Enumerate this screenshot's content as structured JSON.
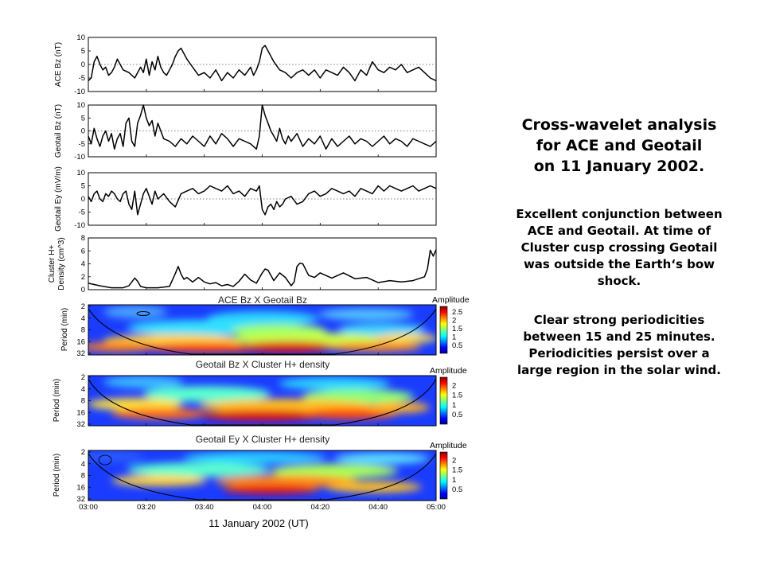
{
  "description": {
    "title_lines": [
      "Cross-wavelet analysis",
      "for ACE and Geotail",
      "on 11 January 2002."
    ],
    "para1_lines": [
      "Excellent conjunction between",
      "ACE and Geotail. At time of",
      "Cluster cusp crossing Geotail",
      "was outside the Earth‘s bow",
      "shock."
    ],
    "para2_lines": [
      "Clear strong periodicities",
      "between 15 and 25 minutes.",
      "Periodicities persist over a",
      "large region in the solar wind."
    ]
  },
  "chart_data": {
    "type": "line",
    "xlabel": "11 January 2002 (UT)",
    "x_ticks": [
      "03:00",
      "03:20",
      "03:40",
      "04:00",
      "04:20",
      "04:40",
      "05:00"
    ],
    "x_minutes": [
      0,
      20,
      40,
      60,
      80,
      100,
      120
    ],
    "series": [
      {
        "name": "ACE Bz",
        "ylabel": "ACE Bz (nT)",
        "ylim": [
          -10,
          10
        ],
        "yticks": [
          "10",
          "5",
          "0",
          "-5",
          "-10"
        ],
        "x": [
          0,
          1,
          2,
          3,
          4,
          5,
          6,
          7,
          8,
          9,
          10,
          12,
          14,
          16,
          18,
          19,
          20,
          21,
          22,
          23,
          24,
          25,
          26,
          27,
          28,
          29,
          30,
          31,
          32,
          34,
          36,
          38,
          40,
          42,
          44,
          46,
          48,
          50,
          52,
          54,
          56,
          57,
          58,
          59,
          60,
          61,
          62,
          63,
          64,
          66,
          68,
          70,
          72,
          74,
          76,
          78,
          80,
          82,
          84,
          86,
          88,
          90,
          92,
          94,
          96,
          98,
          100,
          102,
          104,
          106,
          108,
          110,
          112,
          114,
          116,
          118,
          120
        ],
        "values": [
          -6,
          -5,
          1,
          3,
          0,
          -2,
          -1,
          -4,
          -3,
          -1,
          2,
          -2,
          -3,
          -5,
          -1,
          -3,
          2,
          -4,
          1,
          -2,
          3,
          -1,
          -3,
          -4,
          -2,
          0,
          3,
          5,
          6,
          2,
          -1,
          -4,
          -3,
          -5,
          -2,
          -6,
          -3,
          -5,
          -2,
          -4,
          -1,
          -4,
          -2,
          1,
          6,
          7,
          5,
          3,
          1,
          -2,
          -3,
          -5,
          -3,
          -2,
          -4,
          -2,
          -5,
          -2,
          -3,
          -4,
          -1,
          -3,
          -6,
          -2,
          -4,
          1,
          -2,
          -3,
          -1,
          -2,
          0,
          -3,
          -2,
          -1,
          -3,
          -5,
          -6
        ]
      },
      {
        "name": "Geotail Bz",
        "ylabel": "Geotail Bz (nT)",
        "ylim": [
          -10,
          10
        ],
        "yticks": [
          "10",
          "5",
          "0",
          "-5",
          "-10"
        ],
        "x": [
          0,
          1,
          2,
          3,
          4,
          5,
          6,
          7,
          8,
          9,
          10,
          11,
          12,
          13,
          14,
          15,
          16,
          17,
          18,
          19,
          20,
          21,
          22,
          23,
          24,
          25,
          26,
          28,
          30,
          32,
          34,
          36,
          38,
          40,
          42,
          44,
          46,
          48,
          50,
          52,
          54,
          56,
          58,
          59,
          60,
          61,
          62,
          63,
          64,
          65,
          66,
          67,
          68,
          69,
          70,
          72,
          74,
          76,
          78,
          80,
          82,
          84,
          86,
          88,
          90,
          92,
          94,
          96,
          98,
          100,
          102,
          104,
          106,
          108,
          110,
          112,
          114,
          116,
          118,
          120
        ],
        "values": [
          -2,
          -5,
          1,
          -3,
          -6,
          -2,
          0,
          -4,
          -1,
          -7,
          -3,
          -1,
          -6,
          3,
          5,
          -4,
          -6,
          3,
          6,
          10,
          5,
          2,
          4,
          -2,
          3,
          0,
          -3,
          -4,
          -6,
          -3,
          -5,
          -2,
          -4,
          -6,
          -2,
          -5,
          -1,
          -3,
          -6,
          -3,
          -4,
          -5,
          -7,
          -2,
          10,
          6,
          3,
          0,
          -2,
          -4,
          1,
          -3,
          -5,
          -2,
          -4,
          -1,
          -6,
          -3,
          -5,
          -2,
          -7,
          -3,
          -6,
          -4,
          -2,
          -5,
          -3,
          -4,
          -6,
          -4,
          -2,
          -5,
          -3,
          -4,
          -6,
          -3,
          -4,
          -5,
          -6,
          -4
        ]
      },
      {
        "name": "Geotail Ey",
        "ylabel": "Geotail Ey (mV/m)",
        "ylim": [
          -10,
          10
        ],
        "yticks": [
          "10",
          "5",
          "0",
          "-5",
          "-10"
        ],
        "x": [
          0,
          1,
          2,
          3,
          4,
          5,
          6,
          7,
          8,
          9,
          10,
          11,
          12,
          13,
          14,
          15,
          16,
          17,
          18,
          19,
          20,
          21,
          22,
          23,
          24,
          26,
          28,
          30,
          32,
          34,
          36,
          38,
          40,
          42,
          44,
          46,
          48,
          50,
          52,
          54,
          56,
          58,
          59,
          60,
          61,
          62,
          63,
          64,
          65,
          66,
          67,
          68,
          70,
          72,
          74,
          76,
          78,
          80,
          82,
          84,
          86,
          88,
          90,
          92,
          94,
          96,
          98,
          100,
          102,
          104,
          106,
          108,
          110,
          112,
          114,
          116,
          118,
          120
        ],
        "values": [
          1,
          -1,
          2,
          3,
          0,
          -1,
          2,
          1,
          3,
          2,
          0,
          -1,
          2,
          3,
          -2,
          -4,
          3,
          -6,
          -2,
          2,
          4,
          1,
          -2,
          3,
          0,
          2,
          -1,
          -3,
          2,
          3,
          4,
          2,
          3,
          5,
          4,
          3,
          5,
          2,
          3,
          1,
          4,
          3,
          5,
          -4,
          -6,
          -3,
          -2,
          -4,
          -1,
          -3,
          -2,
          0,
          1,
          -2,
          -1,
          2,
          3,
          1,
          2,
          4,
          3,
          2,
          3,
          1,
          4,
          3,
          2,
          5,
          3,
          5,
          4,
          3,
          4,
          5,
          3,
          4,
          5,
          4
        ]
      },
      {
        "name": "Cluster H+ Density",
        "ylabel": "Cluster H+ Density (cm^3)",
        "ylim": [
          0,
          8
        ],
        "yticks": [
          "8",
          "6",
          "4",
          "2",
          "0"
        ],
        "x": [
          0,
          4,
          8,
          12,
          14,
          15,
          16,
          17,
          18,
          20,
          24,
          28,
          30,
          31,
          32,
          33,
          34,
          36,
          38,
          40,
          42,
          44,
          46,
          48,
          50,
          52,
          54,
          56,
          58,
          60,
          61,
          62,
          64,
          66,
          68,
          70,
          71,
          72,
          73,
          74,
          76,
          78,
          80,
          84,
          88,
          92,
          96,
          100,
          104,
          108,
          112,
          114,
          116,
          117,
          118,
          119,
          120
        ],
        "values": [
          1,
          0.6,
          0.3,
          0.3,
          0.6,
          1.2,
          1.8,
          1.3,
          0.5,
          0.3,
          0.3,
          0.5,
          2.5,
          3.6,
          2.4,
          1.6,
          1.9,
          1.2,
          1.9,
          1.2,
          0.9,
          1.1,
          0.6,
          0.8,
          0.5,
          1.3,
          2.4,
          1.5,
          1.0,
          2.6,
          3.2,
          3.0,
          1.4,
          2.6,
          1.9,
          0.6,
          1.2,
          3.6,
          4.1,
          4.0,
          2.2,
          1.9,
          2.6,
          1.8,
          2.6,
          1.7,
          1.9,
          1.1,
          1.4,
          1.2,
          1.4,
          1.7,
          2.0,
          3.2,
          6.1,
          5.2,
          6.2
        ]
      }
    ],
    "wavelet_panels": [
      {
        "title": "ACE Bz X Geotail Bz",
        "ylabel": "Period (min)",
        "yticks": [
          "2",
          "4",
          "8",
          "16",
          "32"
        ],
        "colorbar_label": "Amplitude",
        "colorbar_ticks": [
          "2.5",
          "2",
          "1.5",
          "1",
          "0.5"
        ],
        "colorbar_max": 2.8
      },
      {
        "title": "Geotail Bz X Cluster H+ density",
        "ylabel": "Period (min)",
        "yticks": [
          "2",
          "4",
          "8",
          "16",
          "32"
        ],
        "colorbar_label": "Amplitude",
        "colorbar_ticks": [
          "2",
          "1.5",
          "1",
          "0.5"
        ],
        "colorbar_max": 2.4
      },
      {
        "title": "Geotail Ey X Cluster H+ density",
        "ylabel": "Period (min)",
        "yticks": [
          "2",
          "4",
          "8",
          "16",
          "32"
        ],
        "colorbar_label": "Amplitude",
        "colorbar_ticks": [
          "2",
          "1.5",
          "1",
          "0.5"
        ],
        "colorbar_max": 2.4
      }
    ]
  }
}
